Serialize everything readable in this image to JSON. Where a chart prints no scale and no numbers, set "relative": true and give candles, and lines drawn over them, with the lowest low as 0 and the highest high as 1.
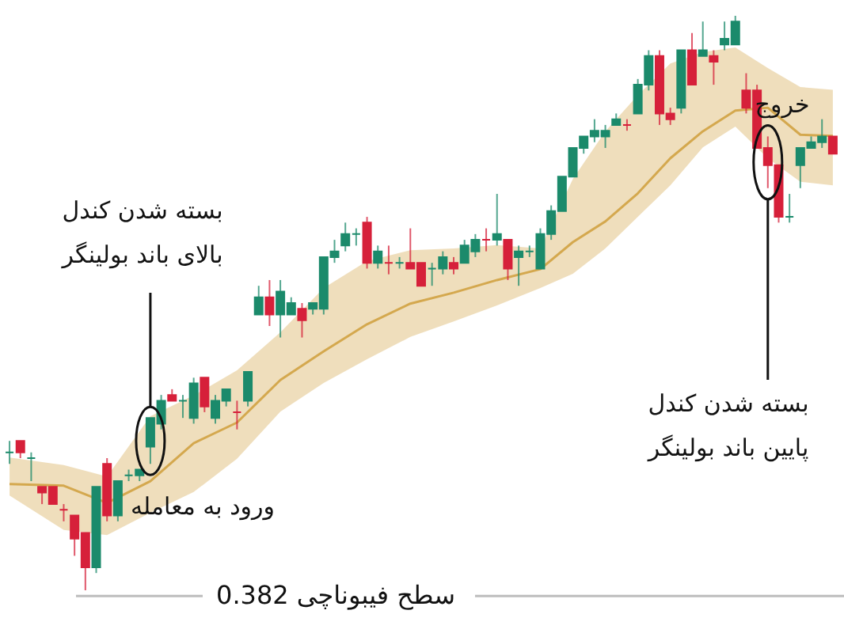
{
  "chart_data": {
    "type": "candlestick",
    "relative": true,
    "categories": [
      null,
      null,
      null,
      null,
      null,
      null,
      null,
      null,
      null,
      null,
      null,
      null,
      null,
      null,
      null,
      null,
      null,
      null,
      null,
      null,
      null,
      null,
      null,
      null,
      null,
      null,
      null,
      null,
      null,
      null,
      null,
      null,
      null,
      null,
      null,
      null,
      null,
      null,
      null,
      null,
      null,
      null,
      null,
      null,
      null,
      null,
      null,
      null,
      null,
      null,
      null,
      null,
      null,
      null,
      null,
      null,
      null,
      null,
      null,
      null,
      null,
      null,
      null,
      null,
      null,
      null,
      null,
      null,
      null,
      null,
      null,
      null,
      null,
      null,
      null,
      null,
      null
    ],
    "ohlc": [
      [
        0.24,
        0.26,
        0.22,
        0.24
      ],
      [
        0.26,
        0.26,
        0.23,
        0.24
      ],
      [
        0.23,
        0.24,
        0.19,
        0.23
      ],
      [
        0.18,
        0.18,
        0.15,
        0.17
      ],
      [
        0.18,
        0.18,
        0.15,
        0.15
      ],
      [
        0.14,
        0.15,
        0.12,
        0.14
      ],
      [
        0.13,
        0.13,
        0.06,
        0.09
      ],
      [
        0.1,
        0.1,
        0,
        0.04
      ],
      [
        0.04,
        0.18,
        0.03,
        0.18
      ],
      [
        0.22,
        0.23,
        0.12,
        0.13
      ],
      [
        0.13,
        0.19,
        0.12,
        0.19
      ],
      [
        0.2,
        0.21,
        0.19,
        0.2
      ],
      [
        0.2,
        0.21,
        0.19,
        0.21
      ],
      [
        0.25,
        0.3,
        0.22,
        0.3
      ],
      [
        0.29,
        0.34,
        0.28,
        0.33
      ],
      [
        0.34,
        0.35,
        0.33,
        0.33
      ],
      [
        0.33,
        0.34,
        0.3,
        0.33
      ],
      [
        0.3,
        0.37,
        0.29,
        0.36
      ],
      [
        0.37,
        0.37,
        0.31,
        0.32
      ],
      [
        0.3,
        0.34,
        0.29,
        0.33
      ],
      [
        0.33,
        0.35,
        0.32,
        0.35
      ],
      [
        0.31,
        0.33,
        0.28,
        0.31
      ],
      [
        0.33,
        0.38,
        0.32,
        0.38
      ],
      [
        0.48,
        0.53,
        0.48,
        0.51
      ],
      [
        0.51,
        0.54,
        0.46,
        0.48
      ],
      [
        0.48,
        0.54,
        0.44,
        0.52
      ],
      [
        0.48,
        0.51,
        0.48,
        0.5
      ],
      [
        0.49,
        0.5,
        0.44,
        0.47
      ],
      [
        0.49,
        0.5,
        0.48,
        0.5
      ],
      [
        0.49,
        0.58,
        0.48,
        0.58
      ],
      [
        0.58,
        0.61,
        0.57,
        0.59
      ],
      [
        0.6,
        0.64,
        0.59,
        0.62
      ],
      [
        0.62,
        0.63,
        0.6,
        0.62
      ],
      [
        0.64,
        0.65,
        0.56,
        0.57
      ],
      [
        0.57,
        0.6,
        0.56,
        0.59
      ],
      [
        0.57,
        0.6,
        0.55,
        0.57
      ],
      [
        0.57,
        0.58,
        0.56,
        0.57
      ],
      [
        0.57,
        0.63,
        0.56,
        0.56
      ],
      [
        0.57,
        0.57,
        0.53,
        0.53
      ],
      [
        0.56,
        0.57,
        0.53,
        0.56
      ],
      [
        0.56,
        0.59,
        0.55,
        0.58
      ],
      [
        0.57,
        0.58,
        0.55,
        0.56
      ],
      [
        0.57,
        0.61,
        0.57,
        0.6
      ],
      [
        0.59,
        0.62,
        0.58,
        0.61
      ],
      [
        0.61,
        0.63,
        0.59,
        0.61
      ],
      [
        0.61,
        0.69,
        0.6,
        0.62
      ],
      [
        0.61,
        0.61,
        0.54,
        0.56
      ],
      [
        0.58,
        0.6,
        0.53,
        0.59
      ],
      [
        0.59,
        0.6,
        0.58,
        0.59
      ],
      [
        0.56,
        0.63,
        0.56,
        0.62
      ],
      [
        0.62,
        0.67,
        0.61,
        0.66
      ],
      [
        0.66,
        0.72,
        0.66,
        0.72
      ],
      [
        0.72,
        0.77,
        0.72,
        0.77
      ],
      [
        0.77,
        0.79,
        0.76,
        0.79
      ],
      [
        0.79,
        0.82,
        0.78,
        0.8
      ],
      [
        0.79,
        0.81,
        0.77,
        0.8
      ],
      [
        0.81,
        0.83,
        0.81,
        0.82
      ],
      [
        0.81,
        0.82,
        0.8,
        0.81
      ],
      [
        0.83,
        0.89,
        0.83,
        0.88
      ],
      [
        0.88,
        0.94,
        0.87,
        0.93
      ],
      [
        0.93,
        0.94,
        0.81,
        0.83
      ],
      [
        0.83,
        0.84,
        0.81,
        0.82
      ],
      [
        0.84,
        0.94,
        0.83,
        0.94
      ],
      [
        0.94,
        0.97,
        0.88,
        0.88
      ],
      [
        0.93,
        0.99,
        0.93,
        0.94
      ],
      [
        0.93,
        0.94,
        0.88,
        0.92
      ],
      [
        0.95,
        0.99,
        0.94,
        0.96
      ],
      [
        0.95,
        1,
        0.95,
        0.99
      ],
      [
        0.87,
        0.9,
        0.83,
        0.84
      ],
      [
        0.87,
        0.88,
        0.77,
        0.77
      ],
      [
        0.77,
        0.79,
        0.7,
        0.74
      ],
      [
        0.74,
        0.74,
        0.64,
        0.65
      ],
      [
        0.65,
        0.69,
        0.64,
        0.65
      ],
      [
        0.74,
        0.77,
        0.7,
        0.77
      ],
      [
        0.77,
        0.79,
        0.77,
        0.78
      ],
      [
        0.78,
        0.82,
        0.77,
        0.79
      ],
      [
        0.79,
        0.79,
        0.76,
        0.76
      ]
    ],
    "colors": [
      "#1b8a6b",
      "#d6203a",
      "#1b8a6b",
      "#d6203a",
      "#d6203a",
      "#d6203a",
      "#d6203a",
      "#d6203a",
      "#1b8a6b",
      "#d6203a",
      "#1b8a6b",
      "#1b8a6b",
      "#1b8a6b",
      "#1b8a6b",
      "#1b8a6b",
      "#d6203a",
      "#1b8a6b",
      "#1b8a6b",
      "#d6203a",
      "#1b8a6b",
      "#1b8a6b",
      "#d6203a",
      "#1b8a6b",
      "#1b8a6b",
      "#d6203a",
      "#1b8a6b",
      "#1b8a6b",
      "#d6203a",
      "#1b8a6b",
      "#1b8a6b",
      "#1b8a6b",
      "#1b8a6b",
      "#1b8a6b",
      "#d6203a",
      "#1b8a6b",
      "#d6203a",
      "#1b8a6b",
      "#d6203a",
      "#d6203a",
      "#1b8a6b",
      "#1b8a6b",
      "#d6203a",
      "#1b8a6b",
      "#1b8a6b",
      "#d6203a",
      "#1b8a6b",
      "#d6203a",
      "#1b8a6b",
      "#1b8a6b",
      "#1b8a6b",
      "#1b8a6b",
      "#1b8a6b",
      "#1b8a6b",
      "#1b8a6b",
      "#1b8a6b",
      "#1b8a6b",
      "#1b8a6b",
      "#d6203a",
      "#1b8a6b",
      "#1b8a6b",
      "#d6203a",
      "#d6203a",
      "#1b8a6b",
      "#d6203a",
      "#1b8a6b",
      "#d6203a",
      "#1b8a6b",
      "#1b8a6b",
      "#d6203a",
      "#d6203a",
      "#d6203a",
      "#d6203a",
      "#1b8a6b",
      "#1b8a6b",
      "#1b8a6b",
      "#1b8a6b",
      "#d6203a"
    ],
    "series": [
      {
        "type": "line",
        "color": "#d4a84e",
        "values": [
          0.185,
          null,
          null,
          null,
          null,
          0.182,
          null,
          null,
          null,
          0.152,
          null,
          null,
          null,
          0.19,
          null,
          null,
          null,
          0.256,
          null,
          null,
          null,
          0.292,
          null,
          null,
          null,
          0.366,
          null,
          null,
          null,
          0.416,
          null,
          null,
          null,
          0.463,
          null,
          null,
          null,
          0.499,
          null,
          null,
          null,
          0.518,
          null,
          null,
          null,
          0.54,
          null,
          null,
          null,
          0.559,
          null,
          null,
          0.606,
          null,
          null,
          0.642,
          null,
          null,
          0.691,
          null,
          null,
          0.752,
          null,
          null,
          0.799,
          null,
          null,
          0.835,
          null,
          null,
          0.84,
          null,
          null,
          0.793,
          null,
          null,
          0.791
        ],
        "lower": [
          0.165,
          null,
          null,
          null,
          null,
          0.105,
          null,
          null,
          null,
          0.096,
          null,
          null,
          null,
          0.135,
          null,
          null,
          null,
          0.171,
          null,
          null,
          null,
          0.229,
          null,
          null,
          null,
          0.311,
          null,
          null,
          null,
          0.361,
          null,
          null,
          null,
          0.402,
          null,
          null,
          null,
          0.441,
          null,
          null,
          null,
          0.468,
          null,
          null,
          null,
          0.496,
          null,
          null,
          null,
          0.526,
          null,
          null,
          0.551,
          null,
          null,
          0.595,
          null,
          null,
          0.65,
          null,
          null,
          0.705,
          null,
          null,
          0.771,
          null,
          null,
          0.807,
          null,
          null,
          0.752,
          null,
          null,
          0.711,
          null,
          null,
          0.705
        ],
        "upper": [
          0.231,
          null,
          null,
          null,
          null,
          0.218,
          null,
          null,
          null,
          0.198,
          null,
          null,
          null,
          0.303,
          null,
          null,
          null,
          0.339,
          null,
          null,
          null,
          0.383,
          null,
          null,
          null,
          0.449,
          null,
          null,
          null,
          0.526,
          null,
          null,
          null,
          0.573,
          null,
          null,
          null,
          0.592,
          null,
          null,
          null,
          0.595,
          null,
          null,
          null,
          0.601,
          null,
          null,
          null,
          0.595,
          null,
          null,
          0.716,
          null,
          null,
          0.799,
          null,
          null,
          0.862,
          null,
          null,
          0.917,
          null,
          null,
          0.937,
          null,
          null,
          0.945,
          null,
          null,
          0.909,
          null,
          null,
          0.876,
          null,
          null,
          0.871
        ]
      }
    ],
    "ref_lines": [
      {
        "axis": "y",
        "value": -0.01,
        "label": "سطح فیبوناچی 0.382",
        "color": "#bdbdbd"
      }
    ],
    "annotations": [
      "بسته شدن کندل\nبالای باند بولینگر",
      "ورود به معامله",
      "خروج",
      "بسته شدن کندل\nپایین باند بولینگر"
    ]
  }
}
